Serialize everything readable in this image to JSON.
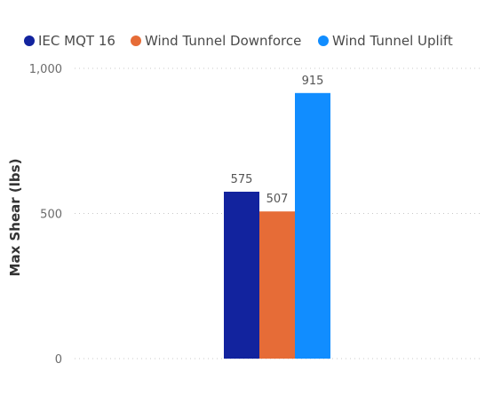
{
  "chart_data": {
    "type": "bar",
    "categories": [
      ""
    ],
    "series": [
      {
        "name": "IEC MQT 16",
        "values": [
          575
        ],
        "color": "#12239E"
      },
      {
        "name": "Wind Tunnel Downforce",
        "values": [
          507
        ],
        "color": "#E66C37"
      },
      {
        "name": "Wind Tunnel Uplift",
        "values": [
          915
        ],
        "color": "#118DFF"
      }
    ],
    "title": "",
    "xlabel": "",
    "ylabel": "Max Shear (lbs)",
    "ylim": [
      0,
      1000
    ],
    "yticks": [
      {
        "value": 0,
        "label": "0"
      },
      {
        "value": 500,
        "label": "500"
      },
      {
        "value": 1000,
        "label": "1,000"
      }
    ],
    "data_labels": [
      "575",
      "507",
      "915"
    ],
    "grid": true,
    "legend_position": "top-left"
  }
}
